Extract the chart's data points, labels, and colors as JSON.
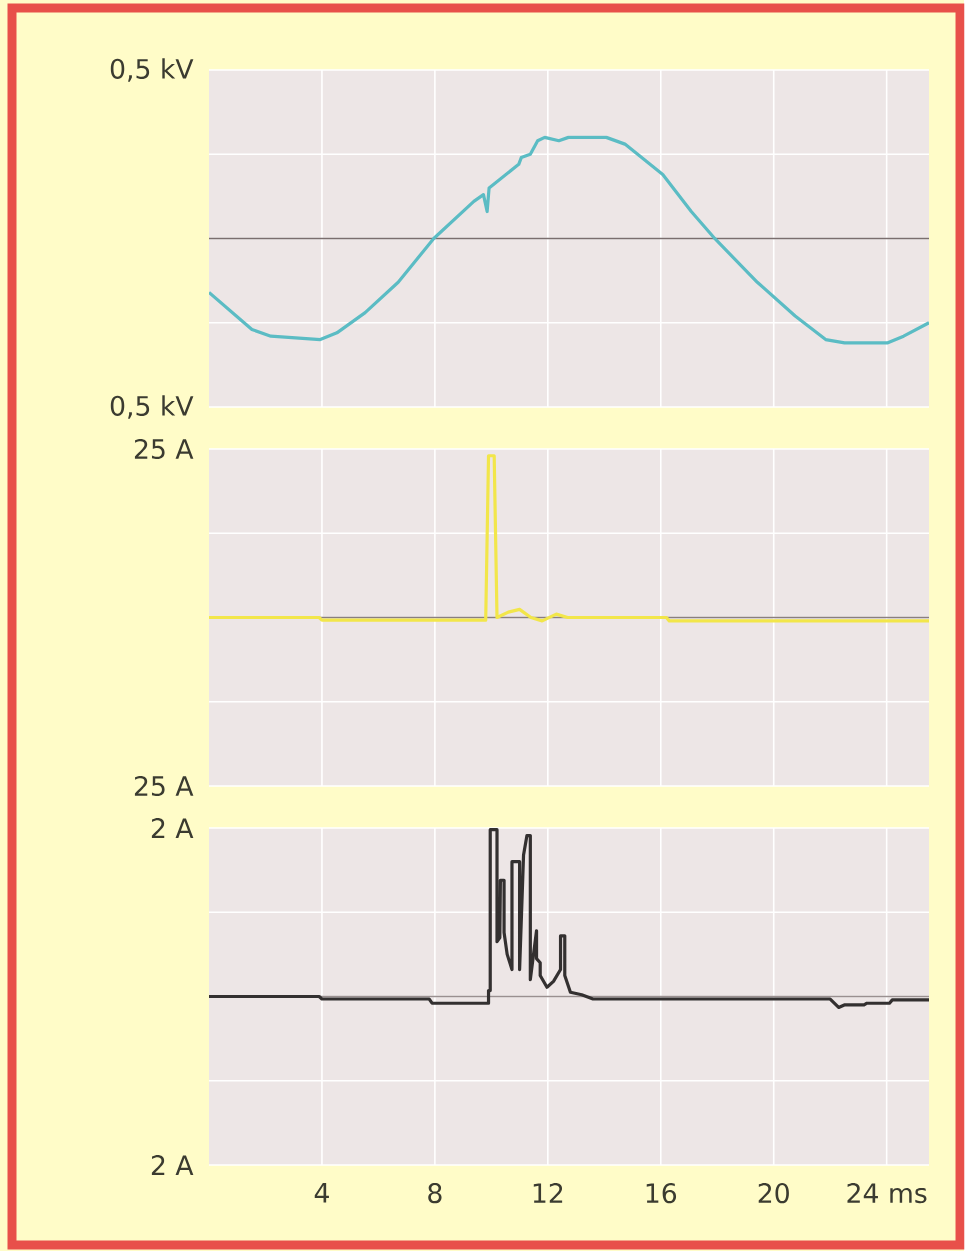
{
  "chart_data": [
    {
      "type": "line",
      "color": "#5bbcc4",
      "xlim": [
        0,
        25.5
      ],
      "ylim": [
        -0.5,
        0.5
      ],
      "grid": true,
      "tick_labels": "y",
      "xticks": [
        4,
        8,
        12,
        16,
        20,
        24
      ],
      "yticks": [
        {
          "value": -0.5,
          "label": "0,5 kV"
        },
        {
          "value": -0.25,
          "label": null
        },
        {
          "value": 0,
          "label": null
        },
        {
          "value": 0.25,
          "label": null
        },
        {
          "value": 0.5,
          "label": "0,5 kV"
        }
      ],
      "ref_lines": [
        {
          "axis": "y",
          "value": 0,
          "color": "#7a6e6e"
        }
      ],
      "x": [
        0.0,
        1.52,
        2.19,
        3.94,
        4.53,
        5.53,
        6.7,
        7.96,
        9.38,
        9.72,
        9.85,
        9.92,
        10.97,
        11.06,
        11.38,
        11.64,
        11.89,
        12.39,
        12.73,
        14.07,
        14.73,
        16.07,
        17.08,
        17.91,
        19.42,
        20.76,
        21.84,
        22.51,
        24.02,
        24.6,
        25.5
      ],
      "values": [
        -0.16,
        -0.27,
        -0.29,
        -0.3,
        -0.28,
        -0.22,
        -0.13,
        0.0,
        0.11,
        0.13,
        0.08,
        0.15,
        0.22,
        0.24,
        0.25,
        0.29,
        0.3,
        0.29,
        0.3,
        0.3,
        0.28,
        0.19,
        0.08,
        0.0,
        -0.13,
        -0.23,
        -0.3,
        -0.31,
        -0.31,
        -0.29,
        -0.25
      ]
    },
    {
      "type": "line",
      "color": "#f2e64a",
      "xlim": [
        0,
        25.5
      ],
      "ylim": [
        -25,
        25
      ],
      "grid": true,
      "tick_labels": "y",
      "xticks": [
        4,
        8,
        12,
        16,
        20,
        24
      ],
      "yticks": [
        {
          "value": -25,
          "label": "25 A"
        },
        {
          "value": -12.5,
          "label": null
        },
        {
          "value": 0,
          "label": null
        },
        {
          "value": 12.5,
          "label": null
        },
        {
          "value": 25,
          "label": "25 A"
        }
      ],
      "ref_lines": [
        {
          "axis": "y",
          "value": 0,
          "color": "#8a7f7f"
        }
      ],
      "x": [
        0,
        3.9,
        4.0,
        9.8,
        9.9,
        10.1,
        10.2,
        10.6,
        11.0,
        11.4,
        11.8,
        12.3,
        12.7,
        16.2,
        16.3,
        25.5
      ],
      "values": [
        0,
        0,
        -0.4,
        -0.4,
        24,
        24,
        0,
        0.8,
        1.2,
        0,
        -0.5,
        0.5,
        0,
        0,
        -0.5,
        -0.5
      ]
    },
    {
      "type": "line",
      "color": "#333030",
      "xlim": [
        0,
        25.5
      ],
      "ylim": [
        -2,
        2
      ],
      "grid": true,
      "xticks": [
        4,
        8,
        12,
        16,
        20,
        {
          "value": 24,
          "label": "24 ms"
        }
      ],
      "yticks": [
        {
          "value": -2,
          "label": "2 A"
        },
        {
          "value": -1,
          "label": null
        },
        {
          "value": 0,
          "label": null
        },
        {
          "value": 1,
          "label": null
        },
        {
          "value": 2,
          "label": "2 A"
        }
      ],
      "ref_lines": [
        {
          "axis": "y",
          "value": 0,
          "color": "#9a9090"
        }
      ],
      "x": [
        0,
        3.9,
        4.0,
        7.8,
        7.9,
        9.9,
        9.9,
        9.96,
        9.96,
        10.2,
        10.2,
        10.3,
        10.32,
        10.45,
        10.45,
        10.56,
        10.73,
        10.73,
        11.0,
        11.0,
        11.14,
        11.26,
        11.38,
        11.38,
        11.6,
        11.6,
        11.73,
        11.73,
        11.97,
        12.2,
        12.45,
        12.45,
        12.6,
        12.6,
        12.8,
        13.2,
        13.6,
        22.0,
        22.3,
        22.5,
        23.2,
        23.3,
        24.1,
        24.2,
        25.5
      ],
      "values": [
        0,
        0,
        -0.03,
        -0.03,
        -0.08,
        -0.08,
        0.07,
        0.07,
        1.98,
        1.98,
        0.65,
        0.7,
        1.38,
        1.38,
        0.76,
        0.5,
        0.32,
        1.6,
        1.6,
        0.32,
        1.68,
        1.91,
        1.91,
        0.2,
        0.78,
        0.45,
        0.4,
        0.25,
        0.11,
        0.18,
        0.32,
        0.72,
        0.72,
        0.25,
        0.05,
        0.02,
        -0.03,
        -0.03,
        -0.13,
        -0.1,
        -0.1,
        -0.08,
        -0.08,
        -0.04,
        -0.04
      ]
    }
  ]
}
